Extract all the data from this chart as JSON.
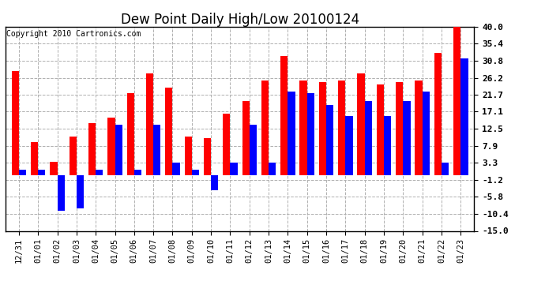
{
  "title": "Dew Point Daily High/Low 20100124",
  "copyright": "Copyright 2010 Cartronics.com",
  "labels": [
    "12/31",
    "01/01",
    "01/02",
    "01/03",
    "01/04",
    "01/05",
    "01/06",
    "01/07",
    "01/08",
    "01/09",
    "01/10",
    "01/11",
    "01/12",
    "01/13",
    "01/14",
    "01/15",
    "01/16",
    "01/17",
    "01/18",
    "01/19",
    "01/20",
    "01/21",
    "01/22",
    "01/23"
  ],
  "highs": [
    28.0,
    9.0,
    3.5,
    10.5,
    14.0,
    15.5,
    22.0,
    27.5,
    23.5,
    10.5,
    10.0,
    16.5,
    20.0,
    25.5,
    32.0,
    25.5,
    25.0,
    25.5,
    27.5,
    24.5,
    25.0,
    25.5,
    33.0,
    40.0
  ],
  "lows": [
    1.5,
    1.5,
    -9.5,
    -9.0,
    1.5,
    13.5,
    1.5,
    13.5,
    3.3,
    1.5,
    -4.0,
    3.3,
    13.5,
    3.3,
    22.5,
    22.0,
    19.0,
    16.0,
    20.0,
    16.0,
    20.0,
    22.5,
    3.3,
    31.5
  ],
  "high_color": "#ff0000",
  "low_color": "#0000ff",
  "bg_color": "#ffffff",
  "grid_color": "#b0b0b0",
  "ylim": [
    -15.0,
    40.0
  ],
  "yticks": [
    -15.0,
    -10.4,
    -5.8,
    -1.2,
    3.3,
    7.9,
    12.5,
    17.1,
    21.7,
    26.2,
    30.8,
    35.4,
    40.0
  ],
  "title_fontsize": 12,
  "copyright_fontsize": 7,
  "tick_fontsize": 7.5,
  "ytick_fontsize": 8,
  "bar_width": 0.38
}
